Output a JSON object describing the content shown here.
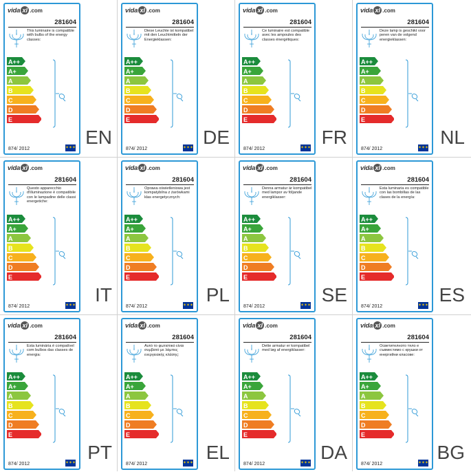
{
  "brand": {
    "logo_left": "vida",
    "logo_mark": "xl",
    "logo_right": ".com"
  },
  "product_code": "281604",
  "regulation": "874/ 2012",
  "eu_flag": "eu-flag",
  "energy_classes": [
    "A++",
    "A+",
    "A",
    "B",
    "C",
    "D",
    "E"
  ],
  "class_colors": [
    "#1b8c3c",
    "#3aa53a",
    "#8cc63f",
    "#e6e31e",
    "#f7b11d",
    "#ef7d23",
    "#e52b2b"
  ],
  "accent_color": "#2c98d6",
  "panels": [
    {
      "lang": "EN",
      "text": "This luminaire is compatible with bulbs of the energy classes:"
    },
    {
      "lang": "DE",
      "text": "Diese Leuchte ist kompatibel mit den Leuchtmitteln der Energieklassen:"
    },
    {
      "lang": "FR",
      "text": "Ce luminaire est compatible avec les ampoules des classes énergétiques:"
    },
    {
      "lang": "NL",
      "text": "Deze lamp is geschikt voor peren van de volgend energieklassen:"
    },
    {
      "lang": "IT",
      "text": "Questo apparecchio d'illuminazione è compatibile con le lampadine delle classi energetiche:"
    },
    {
      "lang": "PL",
      "text": "Oprawa oświetleniowa jest kompatybilna z żarówkami klas energetycznych:"
    },
    {
      "lang": "SE",
      "text": "Denna armatur är kompatibel med lampor av följande energiklasser:"
    },
    {
      "lang": "ES",
      "text": "Esta luminaria es compatible con las bombillas de las clases de la energía:"
    },
    {
      "lang": "PT",
      "text": "Esta luminária é compatível com bulbos das classes de energia:"
    },
    {
      "lang": "EL",
      "text": "Αυτό το φωτιστικό είναι συμβατό με λάμπες ενεργειακής κλάσης:"
    },
    {
      "lang": "DA",
      "text": "Dette armatur er kompatibel med løg af energiklasser:"
    },
    {
      "lang": "BG",
      "text": "Осветителното тяло е съвместимо с крушки от енергийни класове:"
    }
  ]
}
